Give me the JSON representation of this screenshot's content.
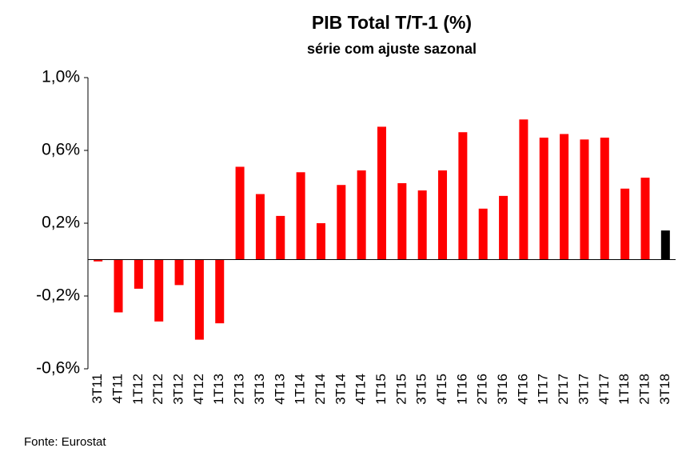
{
  "chart_data": {
    "type": "bar",
    "title": "PIB Total T/T-1 (%)",
    "subtitle": "série com ajuste sazonal",
    "source": "Fonte: Eurostat",
    "categories": [
      "3T11",
      "4T11",
      "1T12",
      "2T12",
      "3T12",
      "4T12",
      "1T13",
      "2T13",
      "3T13",
      "4T13",
      "1T14",
      "2T14",
      "3T14",
      "4T14",
      "1T15",
      "2T15",
      "3T15",
      "4T15",
      "1T16",
      "2T16",
      "3T16",
      "4T16",
      "1T17",
      "2T17",
      "3T17",
      "4T17",
      "1T18",
      "2T18",
      "3T18"
    ],
    "values": [
      -0.01,
      -0.29,
      -0.16,
      -0.34,
      -0.14,
      -0.44,
      -0.35,
      0.51,
      0.36,
      0.24,
      0.48,
      0.2,
      0.41,
      0.49,
      0.73,
      0.42,
      0.38,
      0.49,
      0.7,
      0.28,
      0.35,
      0.77,
      0.67,
      0.69,
      0.66,
      0.67,
      0.39,
      0.45,
      0.16
    ],
    "colors": [
      "#ff0000",
      "#ff0000",
      "#ff0000",
      "#ff0000",
      "#ff0000",
      "#ff0000",
      "#ff0000",
      "#ff0000",
      "#ff0000",
      "#ff0000",
      "#ff0000",
      "#ff0000",
      "#ff0000",
      "#ff0000",
      "#ff0000",
      "#ff0000",
      "#ff0000",
      "#ff0000",
      "#ff0000",
      "#ff0000",
      "#ff0000",
      "#ff0000",
      "#ff0000",
      "#ff0000",
      "#ff0000",
      "#ff0000",
      "#ff0000",
      "#ff0000",
      "#000000"
    ],
    "ylim": [
      -0.6,
      1.0
    ],
    "yticks": [
      {
        "value": -0.6,
        "label": "-0,6%"
      },
      {
        "value": -0.2,
        "label": "-0,2%"
      },
      {
        "value": 0.2,
        "label": "0,2%"
      },
      {
        "value": 0.6,
        "label": "0,6%"
      },
      {
        "value": 1.0,
        "label": "1,0%"
      }
    ]
  }
}
